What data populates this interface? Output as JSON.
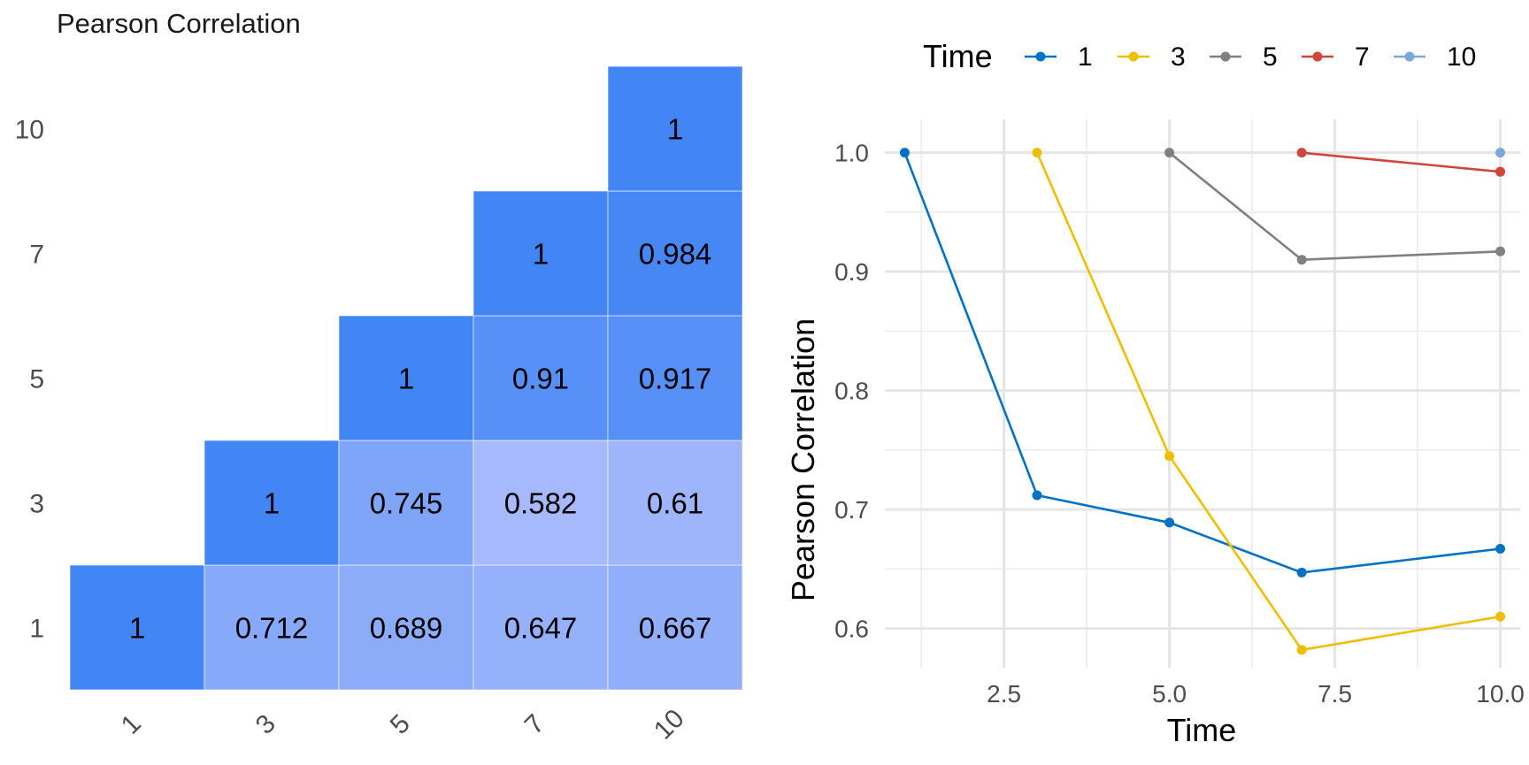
{
  "chart_data": [
    {
      "type": "heatmap",
      "title": "Pearson Correlation",
      "x_categories": [
        "1",
        "3",
        "5",
        "7",
        "10"
      ],
      "y_categories": [
        "1",
        "3",
        "5",
        "7",
        "10"
      ],
      "cells": [
        {
          "x": "1",
          "y": "1",
          "value": 1,
          "label": "1"
        },
        {
          "x": "3",
          "y": "1",
          "value": 0.712,
          "label": "0.712"
        },
        {
          "x": "5",
          "y": "1",
          "value": 0.689,
          "label": "0.689"
        },
        {
          "x": "7",
          "y": "1",
          "value": 0.647,
          "label": "0.647"
        },
        {
          "x": "10",
          "y": "1",
          "value": 0.667,
          "label": "0.667"
        },
        {
          "x": "3",
          "y": "3",
          "value": 1,
          "label": "1"
        },
        {
          "x": "5",
          "y": "3",
          "value": 0.745,
          "label": "0.745"
        },
        {
          "x": "7",
          "y": "3",
          "value": 0.582,
          "label": "0.582"
        },
        {
          "x": "10",
          "y": "3",
          "value": 0.61,
          "label": "0.61"
        },
        {
          "x": "5",
          "y": "5",
          "value": 1,
          "label": "1"
        },
        {
          "x": "7",
          "y": "5",
          "value": 0.91,
          "label": "0.91"
        },
        {
          "x": "10",
          "y": "5",
          "value": 0.917,
          "label": "0.917"
        },
        {
          "x": "7",
          "y": "7",
          "value": 1,
          "label": "1"
        },
        {
          "x": "10",
          "y": "7",
          "value": 0.984,
          "label": "0.984"
        },
        {
          "x": "10",
          "y": "10",
          "value": 1,
          "label": "1"
        }
      ],
      "color_low": "#A6B9FC",
      "color_high": "#4285F4",
      "value_range": [
        0.58,
        1.0
      ]
    },
    {
      "type": "line",
      "xlabel": "Time",
      "ylabel": "Pearson Correlation",
      "legend_title": "Time",
      "legend_position": "top",
      "xlim": [
        0.7,
        10.3
      ],
      "ylim": [
        0.567,
        1.028
      ],
      "x_ticks": [
        2.5,
        5.0,
        7.5,
        10.0
      ],
      "x_tick_labels": [
        "2.5",
        "5.0",
        "7.5",
        "10.0"
      ],
      "y_ticks": [
        0.6,
        0.7,
        0.8,
        0.9,
        1.0
      ],
      "y_tick_labels": [
        "0.6",
        "0.7",
        "0.8",
        "0.9",
        "1.0"
      ],
      "grid": true,
      "series": [
        {
          "name": "1",
          "color": "#0072C6",
          "x": [
            1,
            3,
            5,
            7,
            10
          ],
          "y": [
            1.0,
            0.712,
            0.689,
            0.647,
            0.667
          ]
        },
        {
          "name": "3",
          "color": "#F0BE00",
          "x": [
            3,
            5,
            7,
            10
          ],
          "y": [
            1.0,
            0.745,
            0.582,
            0.61
          ]
        },
        {
          "name": "5",
          "color": "#808080",
          "x": [
            5,
            7,
            10
          ],
          "y": [
            1.0,
            0.91,
            0.917
          ]
        },
        {
          "name": "7",
          "color": "#D1453B",
          "x": [
            7,
            10
          ],
          "y": [
            1.0,
            0.984
          ]
        },
        {
          "name": "10",
          "color": "#7BA7DB",
          "x": [
            10
          ],
          "y": [
            1.0
          ]
        }
      ]
    }
  ]
}
